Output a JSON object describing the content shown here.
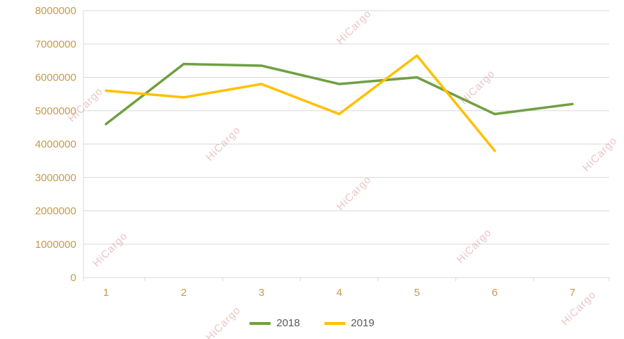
{
  "watermark": {
    "text": "HiCargo"
  },
  "colors": {
    "grid": "#D9D9D9",
    "axis_text": "#C49A4C",
    "legend_text": "#595959"
  },
  "chart_data": {
    "type": "line",
    "title": "",
    "xlabel": "",
    "ylabel": "",
    "x": [
      1,
      2,
      3,
      4,
      5,
      6,
      7
    ],
    "series": [
      {
        "name": "2018",
        "color": "#6FA042",
        "values": [
          4600000,
          6400000,
          6350000,
          5800000,
          6000000,
          4900000,
          5200000
        ]
      },
      {
        "name": "2019",
        "color": "#FFC000",
        "values": [
          5600000,
          5400000,
          5800000,
          4900000,
          6650000,
          3800000,
          null
        ]
      }
    ],
    "ylim": [
      0,
      8000000
    ],
    "yticks": [
      0,
      1000000,
      2000000,
      3000000,
      4000000,
      5000000,
      6000000,
      7000000,
      8000000
    ],
    "grid": true,
    "legend_position": "bottom"
  }
}
